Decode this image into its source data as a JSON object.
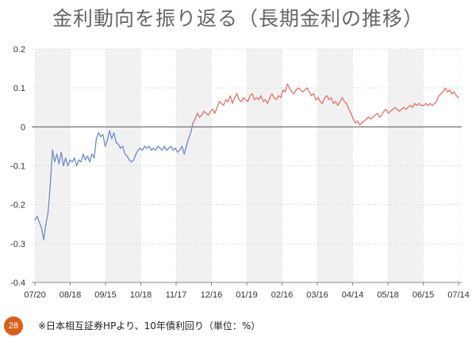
{
  "slide": {
    "title": "金利動向を振り返る（長期金利の推移）",
    "page_number": "28",
    "footnote": "※日本相互証券HPより、10年債利回り（単位：%）"
  },
  "chart_data": {
    "type": "line",
    "title": "",
    "xlabel": "",
    "ylabel": "",
    "x_ticks": [
      "07/20",
      "08/18",
      "09/15",
      "10/18",
      "11/17",
      "12/16",
      "01/19",
      "02/16",
      "03/16",
      "04/14",
      "05/18",
      "06/15",
      "07/14"
    ],
    "y_ticks": [
      "0.2",
      "0.1",
      "0",
      "-0.1",
      "-0.2",
      "-0.3",
      "-0.4"
    ],
    "ylim": [
      -0.4,
      0.2
    ],
    "grid": true,
    "colors": {
      "series_negative": "#6f8cc4",
      "series_positive": "#e0746a",
      "zero_line": "#555555",
      "band": "#f1f1f1",
      "grid": "#dddddd"
    },
    "series": [
      {
        "values": [
          -0.24,
          -0.23,
          -0.245,
          -0.26,
          -0.29,
          -0.25,
          -0.22,
          -0.15,
          -0.06,
          -0.09,
          -0.07,
          -0.095,
          -0.065,
          -0.1,
          -0.08,
          -0.1,
          -0.085,
          -0.09,
          -0.08,
          -0.1,
          -0.085,
          -0.09,
          -0.07,
          -0.085,
          -0.075,
          -0.09,
          -0.07,
          -0.08,
          -0.03,
          -0.015,
          -0.025,
          -0.02,
          -0.05,
          -0.035,
          -0.01,
          -0.03,
          -0.015,
          -0.04,
          -0.045,
          -0.055,
          -0.05,
          -0.07,
          -0.075,
          -0.085,
          -0.09,
          -0.085,
          -0.07,
          -0.06,
          -0.055,
          -0.06,
          -0.05,
          -0.055,
          -0.05,
          -0.06,
          -0.055,
          -0.06,
          -0.05,
          -0.055,
          -0.06,
          -0.05,
          -0.06,
          -0.055,
          -0.05,
          -0.06,
          -0.055,
          -0.065,
          -0.06,
          -0.05,
          -0.07,
          -0.05,
          -0.03,
          -0.015,
          0.01,
          0.02,
          0.035,
          0.025,
          0.03,
          0.04,
          0.035,
          0.03,
          0.04,
          0.045,
          0.035,
          0.05,
          0.065,
          0.06,
          0.055,
          0.07,
          0.065,
          0.08,
          0.06,
          0.075,
          0.085,
          0.07,
          0.065,
          0.075,
          0.07,
          0.065,
          0.08,
          0.085,
          0.07,
          0.075,
          0.07,
          0.08,
          0.065,
          0.07,
          0.06,
          0.075,
          0.085,
          0.075,
          0.07,
          0.08,
          0.075,
          0.095,
          0.09,
          0.11,
          0.1,
          0.09,
          0.085,
          0.095,
          0.1,
          0.095,
          0.09,
          0.095,
          0.1,
          0.09,
          0.08,
          0.085,
          0.07,
          0.075,
          0.065,
          0.06,
          0.075,
          0.08,
          0.07,
          0.075,
          0.06,
          0.065,
          0.055,
          0.065,
          0.075,
          0.065,
          0.06,
          0.045,
          0.035,
          0.02,
          0.01,
          0.015,
          0.005,
          0.01,
          0.015,
          0.02,
          0.025,
          0.02,
          0.025,
          0.03,
          0.035,
          0.025,
          0.03,
          0.04,
          0.045,
          0.035,
          0.04,
          0.045,
          0.05,
          0.045,
          0.04,
          0.045,
          0.05,
          0.045,
          0.05,
          0.055,
          0.05,
          0.06,
          0.055,
          0.06,
          0.055,
          0.055,
          0.06,
          0.055,
          0.06,
          0.055,
          0.06,
          0.065,
          0.08,
          0.085,
          0.09,
          0.1,
          0.09,
          0.095,
          0.085,
          0.09,
          0.08,
          0.075
        ]
      }
    ]
  }
}
